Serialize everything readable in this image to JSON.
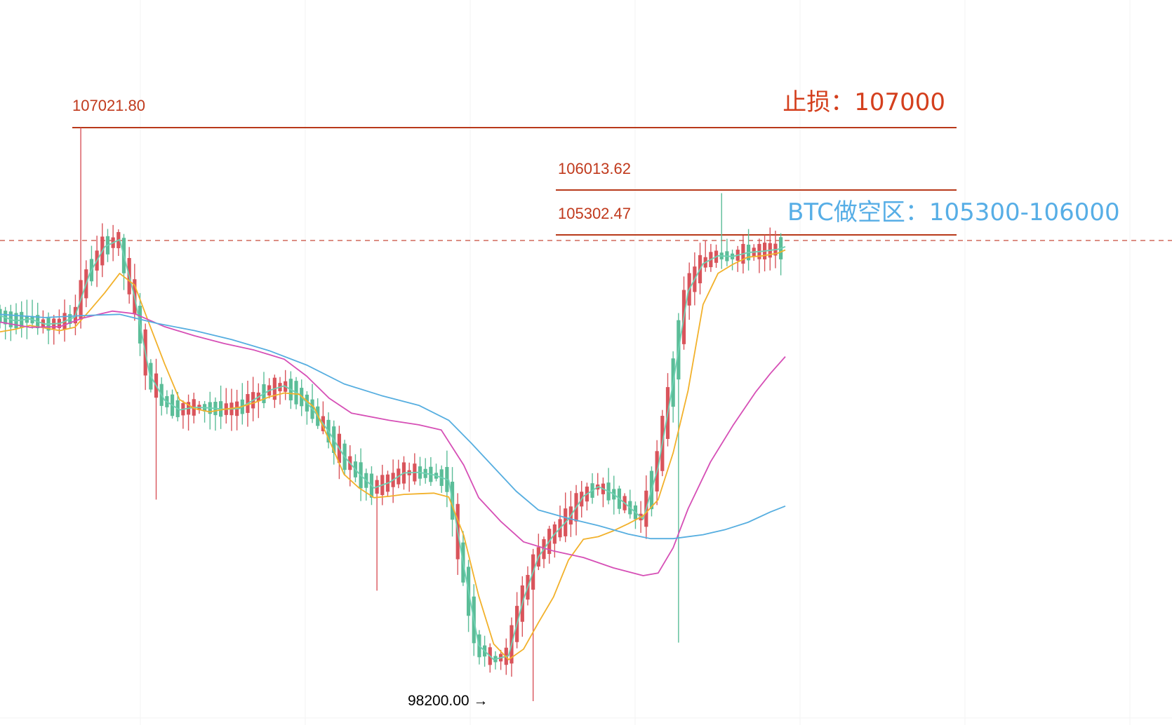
{
  "colors": {
    "up": "#d9545b",
    "down": "#5bbd98",
    "level_line": "#b8391a",
    "level_text": "#c0391c",
    "stop_text": "#d43f1d",
    "short_text": "#57aee6",
    "ma_fast": "#6fd1b3",
    "ma_mid": "#f2b12b",
    "ma_slow": "#d64fb6",
    "ma_long": "#56aee0",
    "grid": "#f3f3f3",
    "current_price": "#c64a3a"
  },
  "chart_data": {
    "type": "candlestick",
    "title": "",
    "xlabel": "",
    "ylabel": "",
    "ylim": [
      97950,
      107800
    ],
    "grid": true,
    "levels": [
      {
        "value": 107021.8,
        "label": "107021.80"
      },
      {
        "value": 106013.62,
        "label": "106013.62"
      },
      {
        "value": 105302.47,
        "label": "105302.47"
      }
    ],
    "annotations": {
      "stop_loss": "止损：107000",
      "short_zone": "BTC做空区：105300-106000",
      "low_marker": "98200.00 →"
    },
    "low": 98200.0,
    "current_price": 105200,
    "moving_averages": [
      {
        "color_key": "ma_fast",
        "points": [
          [
            0,
            104130
          ],
          [
            20,
            104050
          ],
          [
            40,
            104080
          ],
          [
            60,
            104000
          ],
          [
            80,
            104010
          ],
          [
            100,
            104110
          ],
          [
            120,
            104780
          ],
          [
            140,
            105190
          ],
          [
            160,
            105300
          ],
          [
            180,
            104420
          ],
          [
            200,
            103230
          ],
          [
            220,
            102830
          ],
          [
            240,
            102680
          ],
          [
            260,
            102720
          ],
          [
            280,
            102710
          ],
          [
            300,
            102690
          ],
          [
            320,
            102700
          ],
          [
            340,
            102840
          ],
          [
            360,
            102980
          ],
          [
            380,
            103050
          ],
          [
            400,
            102920
          ],
          [
            420,
            102660
          ],
          [
            440,
            102340
          ],
          [
            460,
            101970
          ],
          [
            480,
            101700
          ],
          [
            500,
            101480
          ],
          [
            520,
            101560
          ],
          [
            540,
            101710
          ],
          [
            560,
            101720
          ],
          [
            580,
            101680
          ],
          [
            600,
            101600
          ],
          [
            620,
            100280
          ],
          [
            640,
            99060
          ],
          [
            660,
            98840
          ],
          [
            680,
            98900
          ],
          [
            700,
            99770
          ],
          [
            720,
            100420
          ],
          [
            740,
            100750
          ],
          [
            760,
            101000
          ],
          [
            780,
            101350
          ],
          [
            800,
            101500
          ],
          [
            820,
            101390
          ],
          [
            840,
            101200
          ],
          [
            860,
            101000
          ],
          [
            880,
            101800
          ],
          [
            900,
            103100
          ],
          [
            920,
            104500
          ],
          [
            940,
            104930
          ],
          [
            960,
            105050
          ],
          [
            980,
            105040
          ],
          [
            1000,
            105100
          ],
          [
            1020,
            105120
          ],
          [
            1040,
            105150
          ],
          [
            1050,
            105190
          ]
        ]
      },
      {
        "color_key": "ma_mid",
        "points": [
          [
            0,
            103880
          ],
          [
            20,
            103920
          ],
          [
            40,
            103980
          ],
          [
            60,
            103940
          ],
          [
            80,
            103900
          ],
          [
            100,
            103950
          ],
          [
            120,
            104210
          ],
          [
            140,
            104480
          ],
          [
            160,
            104780
          ],
          [
            180,
            104600
          ],
          [
            200,
            103990
          ],
          [
            220,
            103390
          ],
          [
            240,
            102840
          ],
          [
            260,
            102700
          ],
          [
            280,
            102650
          ],
          [
            300,
            102690
          ],
          [
            320,
            102720
          ],
          [
            340,
            102790
          ],
          [
            360,
            102880
          ],
          [
            380,
            102940
          ],
          [
            400,
            102920
          ],
          [
            420,
            102720
          ],
          [
            440,
            102220
          ],
          [
            460,
            101690
          ],
          [
            480,
            101480
          ],
          [
            500,
            101330
          ],
          [
            520,
            101350
          ],
          [
            540,
            101380
          ],
          [
            560,
            101390
          ],
          [
            580,
            101400
          ],
          [
            600,
            101340
          ],
          [
            620,
            100750
          ],
          [
            640,
            99820
          ],
          [
            660,
            99080
          ],
          [
            680,
            98840
          ],
          [
            700,
            99000
          ],
          [
            720,
            99410
          ],
          [
            740,
            99800
          ],
          [
            760,
            100370
          ],
          [
            780,
            100690
          ],
          [
            800,
            100730
          ],
          [
            820,
            100820
          ],
          [
            840,
            100930
          ],
          [
            860,
            101050
          ],
          [
            880,
            101300
          ],
          [
            900,
            102020
          ],
          [
            920,
            102980
          ],
          [
            940,
            104300
          ],
          [
            960,
            104780
          ],
          [
            980,
            104920
          ],
          [
            1000,
            105030
          ],
          [
            1020,
            105050
          ],
          [
            1040,
            105090
          ],
          [
            1050,
            105140
          ]
        ]
      },
      {
        "color_key": "ma_slow",
        "points": [
          [
            0,
            104030
          ],
          [
            40,
            103950
          ],
          [
            80,
            103960
          ],
          [
            110,
            104090
          ],
          [
            150,
            104200
          ],
          [
            180,
            104160
          ],
          [
            220,
            103960
          ],
          [
            260,
            103820
          ],
          [
            300,
            103700
          ],
          [
            340,
            103600
          ],
          [
            380,
            103460
          ],
          [
            410,
            103200
          ],
          [
            440,
            102860
          ],
          [
            470,
            102630
          ],
          [
            520,
            102520
          ],
          [
            560,
            102450
          ],
          [
            590,
            102370
          ],
          [
            620,
            101830
          ],
          [
            640,
            101330
          ],
          [
            670,
            100960
          ],
          [
            700,
            100650
          ],
          [
            740,
            100510
          ],
          [
            780,
            100410
          ],
          [
            820,
            100250
          ],
          [
            860,
            100130
          ],
          [
            880,
            100170
          ],
          [
            900,
            100560
          ],
          [
            920,
            101160
          ],
          [
            950,
            101880
          ],
          [
            980,
            102440
          ],
          [
            1010,
            102950
          ],
          [
            1030,
            103240
          ],
          [
            1050,
            103500
          ]
        ]
      },
      {
        "color_key": "ma_long",
        "points": [
          [
            0,
            104150
          ],
          [
            60,
            104100
          ],
          [
            110,
            104130
          ],
          [
            160,
            104150
          ],
          [
            210,
            104010
          ],
          [
            260,
            103900
          ],
          [
            310,
            103760
          ],
          [
            360,
            103590
          ],
          [
            410,
            103370
          ],
          [
            460,
            103080
          ],
          [
            510,
            102900
          ],
          [
            560,
            102750
          ],
          [
            600,
            102520
          ],
          [
            630,
            102170
          ],
          [
            660,
            101800
          ],
          [
            690,
            101430
          ],
          [
            720,
            101140
          ],
          [
            760,
            101010
          ],
          [
            800,
            100900
          ],
          [
            840,
            100770
          ],
          [
            870,
            100700
          ],
          [
            900,
            100700
          ],
          [
            940,
            100760
          ],
          [
            970,
            100840
          ],
          [
            1000,
            100950
          ],
          [
            1030,
            101110
          ],
          [
            1050,
            101200
          ]
        ]
      }
    ]
  }
}
